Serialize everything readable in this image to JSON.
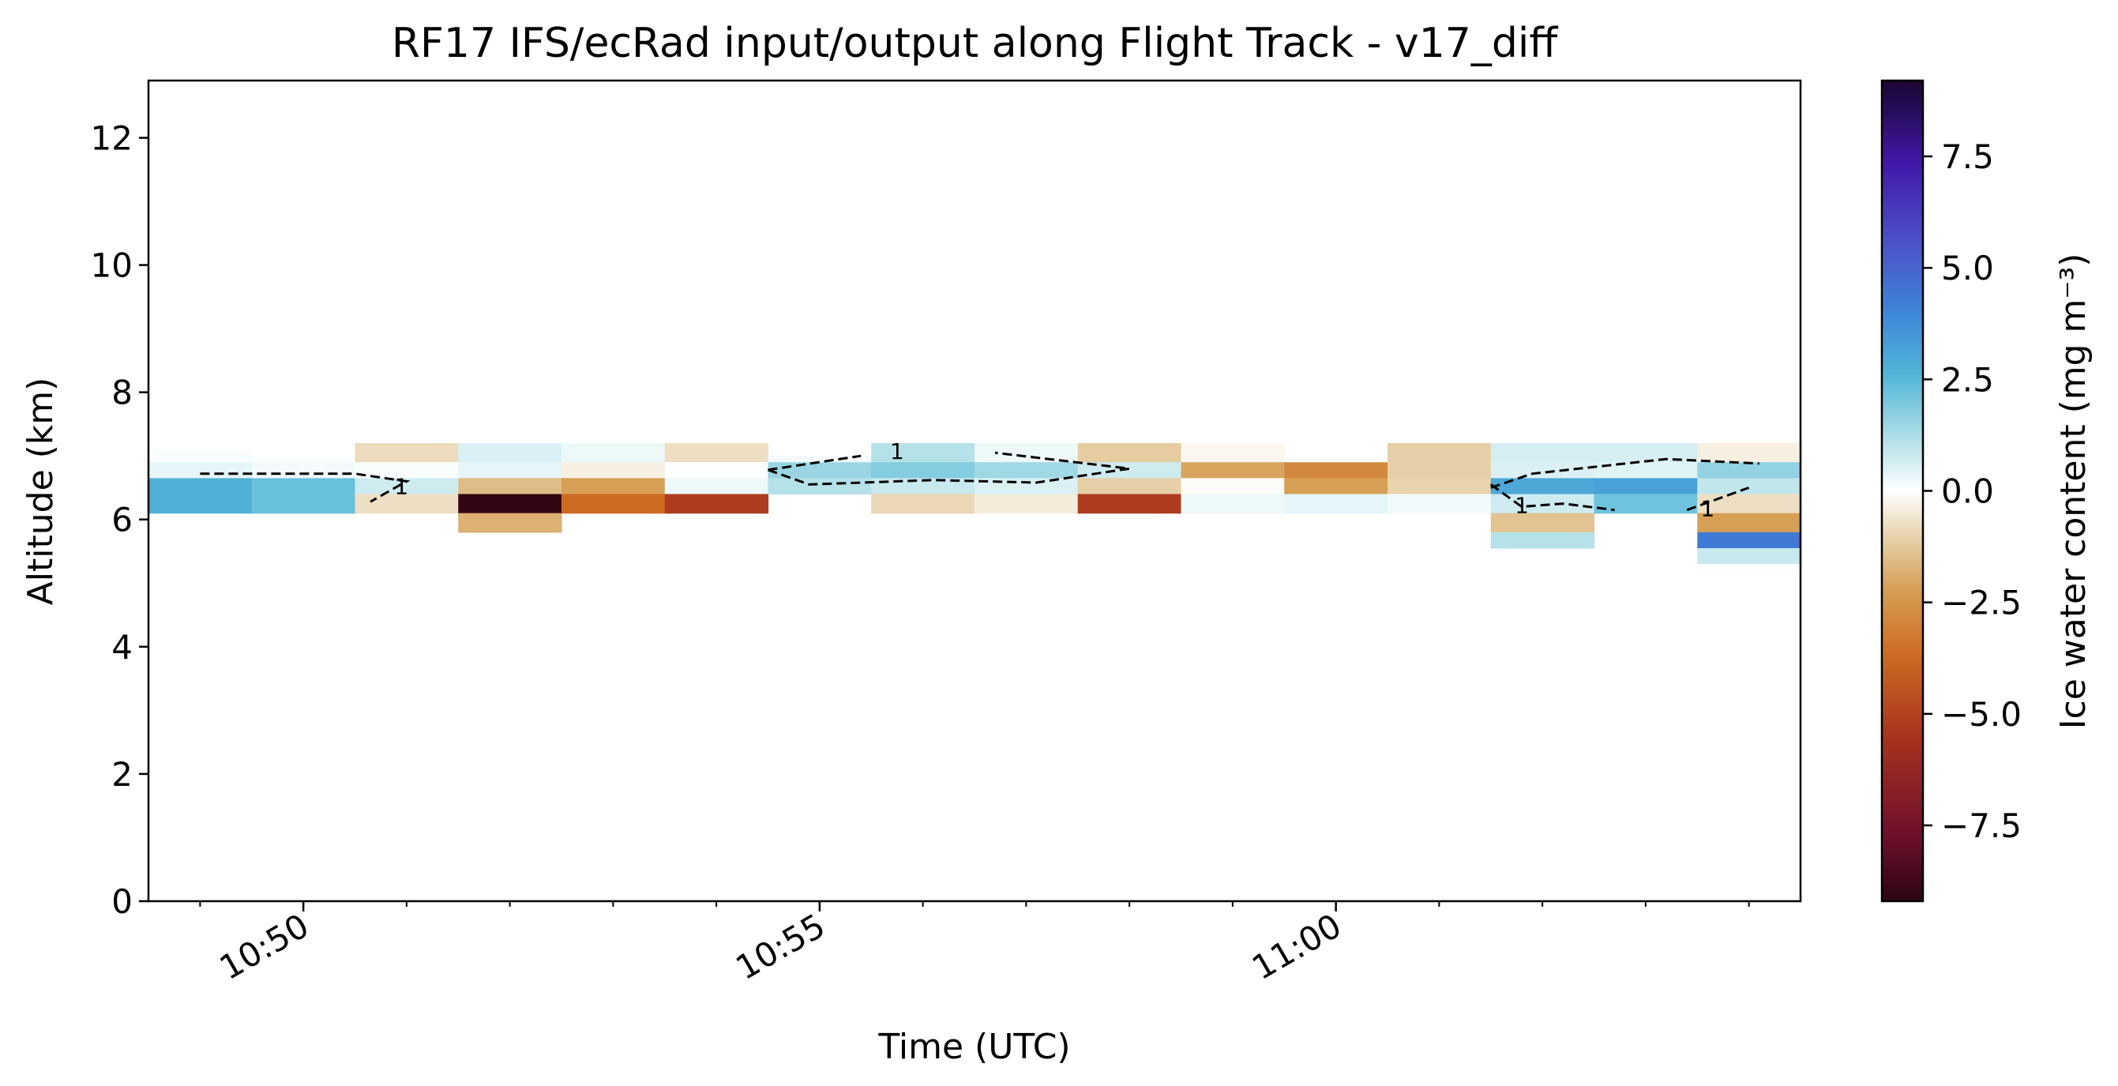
{
  "chart_data": {
    "type": "heatmap",
    "title": "RF17 IFS/ecRad input/output along Flight Track - v17_diff",
    "xlabel": "Time (UTC)",
    "ylabel": "Altitude (km)",
    "xlim": [
      "10:48:30",
      "11:04:30"
    ],
    "ylim": [
      0,
      12.9
    ],
    "x_major_ticks": [
      "10:50",
      "10:55",
      "11:00"
    ],
    "x_tick_rotation": 30,
    "y_ticks": [
      0,
      2,
      4,
      6,
      8,
      10,
      12
    ],
    "colorbar": {
      "label": "Ice water content (mg m⁻³)",
      "range": [
        -9.2,
        9.2
      ],
      "ticks": [
        -7.5,
        -5.0,
        -2.5,
        0.0,
        2.5,
        5.0,
        7.5
      ],
      "tick_labels": [
        "−7.5",
        "−5.0",
        "−2.5",
        "0.0",
        "2.5",
        "5.0",
        "7.5"
      ],
      "colormap": "diverging: dark red/brown (negative) – white (0) – blue/purple (positive)"
    },
    "time_columns": [
      "10:48:30",
      "10:49:30",
      "10:50:30",
      "10:51:30",
      "10:52:30",
      "10:53:30",
      "10:54:30",
      "10:55:30",
      "10:56:30",
      "10:57:30",
      "10:58:30",
      "10:59:30",
      "11:00:30",
      "11:01:30",
      "11:02:30",
      "11:03:30",
      "11:04:30"
    ],
    "cells": [
      {
        "t": 0,
        "z0": 6.9,
        "z1": 7.1,
        "v": 0.1
      },
      {
        "t": 0,
        "z0": 6.65,
        "z1": 6.9,
        "v": 0.4
      },
      {
        "t": 0,
        "z0": 6.1,
        "z1": 6.65,
        "v": 2.8
      },
      {
        "t": 1,
        "z0": 6.9,
        "z1": 7.0,
        "v": 0.1
      },
      {
        "t": 1,
        "z0": 6.65,
        "z1": 6.9,
        "v": 0.2
      },
      {
        "t": 1,
        "z0": 6.1,
        "z1": 6.65,
        "v": 2.3
      },
      {
        "t": 2,
        "z0": 6.9,
        "z1": 7.2,
        "v": -0.9
      },
      {
        "t": 2,
        "z0": 6.65,
        "z1": 6.9,
        "v": 0.1
      },
      {
        "t": 2,
        "z0": 6.4,
        "z1": 6.65,
        "v": 0.8
      },
      {
        "t": 2,
        "z0": 6.1,
        "z1": 6.4,
        "v": -0.8
      },
      {
        "t": 3,
        "z0": 6.9,
        "z1": 7.2,
        "v": 0.6
      },
      {
        "t": 3,
        "z0": 6.65,
        "z1": 6.9,
        "v": 0.4
      },
      {
        "t": 3,
        "z0": 6.4,
        "z1": 6.65,
        "v": -1.8
      },
      {
        "t": 3,
        "z0": 6.1,
        "z1": 6.4,
        "v": -9.0
      },
      {
        "t": 3,
        "z0": 5.8,
        "z1": 6.1,
        "v": -2.2
      },
      {
        "t": 4,
        "z0": 6.9,
        "z1": 7.2,
        "v": 0.3
      },
      {
        "t": 4,
        "z0": 6.65,
        "z1": 6.9,
        "v": -0.4
      },
      {
        "t": 4,
        "z0": 6.4,
        "z1": 6.65,
        "v": -2.8
      },
      {
        "t": 4,
        "z0": 6.1,
        "z1": 6.4,
        "v": -4.2
      },
      {
        "t": 5,
        "z0": 6.9,
        "z1": 7.2,
        "v": -0.8
      },
      {
        "t": 5,
        "z0": 6.65,
        "z1": 6.9,
        "v": 0.05
      },
      {
        "t": 5,
        "z0": 6.4,
        "z1": 6.65,
        "v": 0.3
      },
      {
        "t": 5,
        "z0": 6.1,
        "z1": 6.4,
        "v": -5.3
      },
      {
        "t": 6,
        "z0": 6.9,
        "z1": 7.0,
        "v": 0.2
      },
      {
        "t": 6,
        "z0": 6.65,
        "z1": 6.9,
        "v": 1.6
      },
      {
        "t": 6,
        "z0": 6.4,
        "z1": 6.65,
        "v": 1.2
      },
      {
        "t": 7,
        "z0": 6.9,
        "z1": 7.2,
        "v": 1.2
      },
      {
        "t": 7,
        "z0": 6.65,
        "z1": 6.9,
        "v": 1.9
      },
      {
        "t": 7,
        "z0": 6.4,
        "z1": 6.65,
        "v": 0.9
      },
      {
        "t": 7,
        "z0": 6.1,
        "z1": 6.4,
        "v": -1.0
      },
      {
        "t": 8,
        "z0": 6.9,
        "z1": 7.2,
        "v": 0.3
      },
      {
        "t": 8,
        "z0": 6.65,
        "z1": 6.9,
        "v": 1.5
      },
      {
        "t": 8,
        "z0": 6.4,
        "z1": 6.65,
        "v": 0.6
      },
      {
        "t": 8,
        "z0": 6.1,
        "z1": 6.4,
        "v": -0.5
      },
      {
        "t": 9,
        "z0": 6.9,
        "z1": 7.2,
        "v": -1.3
      },
      {
        "t": 9,
        "z0": 6.65,
        "z1": 6.9,
        "v": 0.8
      },
      {
        "t": 9,
        "z0": 6.4,
        "z1": 6.65,
        "v": -1.2
      },
      {
        "t": 9,
        "z0": 6.1,
        "z1": 6.4,
        "v": -5.3
      },
      {
        "t": 10,
        "z0": 6.9,
        "z1": 7.2,
        "v": -0.2
      },
      {
        "t": 10,
        "z0": 6.65,
        "z1": 6.9,
        "v": -2.6
      },
      {
        "t": 10,
        "z0": 6.4,
        "z1": 6.65,
        "v": -0.1
      },
      {
        "t": 10,
        "z0": 6.1,
        "z1": 6.4,
        "v": 0.3
      },
      {
        "t": 11,
        "z0": 6.65,
        "z1": 6.9,
        "v": -3.4
      },
      {
        "t": 11,
        "z0": 6.4,
        "z1": 6.65,
        "v": -2.8
      },
      {
        "t": 11,
        "z0": 6.1,
        "z1": 6.4,
        "v": 0.4
      },
      {
        "t": 12,
        "z0": 6.65,
        "z1": 7.2,
        "v": -1.2
      },
      {
        "t": 12,
        "z0": 6.4,
        "z1": 6.65,
        "v": -1.1
      },
      {
        "t": 12,
        "z0": 6.1,
        "z1": 6.4,
        "v": 0.2
      },
      {
        "t": 13,
        "z0": 6.9,
        "z1": 7.2,
        "v": 0.7
      },
      {
        "t": 13,
        "z0": 6.65,
        "z1": 6.9,
        "v": 0.6
      },
      {
        "t": 13,
        "z0": 6.4,
        "z1": 6.65,
        "v": 3.0
      },
      {
        "t": 13,
        "z0": 6.1,
        "z1": 6.4,
        "v": 0.8
      },
      {
        "t": 13,
        "z0": 5.8,
        "z1": 6.1,
        "v": -1.6
      },
      {
        "t": 13,
        "z0": 5.55,
        "z1": 5.8,
        "v": 1.2
      },
      {
        "t": 14,
        "z0": 6.9,
        "z1": 7.2,
        "v": 0.7
      },
      {
        "t": 14,
        "z0": 6.65,
        "z1": 6.9,
        "v": 0.5
      },
      {
        "t": 14,
        "z0": 6.4,
        "z1": 6.65,
        "v": 3.2
      },
      {
        "t": 14,
        "z0": 6.1,
        "z1": 6.4,
        "v": 2.2
      },
      {
        "t": 15,
        "z0": 6.9,
        "z1": 7.2,
        "v": -0.4
      },
      {
        "t": 15,
        "z0": 6.65,
        "z1": 6.9,
        "v": 1.7
      },
      {
        "t": 15,
        "z0": 6.4,
        "z1": 6.65,
        "v": 1.0
      },
      {
        "t": 15,
        "z0": 6.1,
        "z1": 6.4,
        "v": -0.8
      },
      {
        "t": 15,
        "z0": 5.8,
        "z1": 6.1,
        "v": -2.8
      },
      {
        "t": 15,
        "z0": 5.55,
        "z1": 5.8,
        "v": 4.3
      },
      {
        "t": 15,
        "z0": 5.3,
        "z1": 5.55,
        "v": 0.9
      },
      {
        "t": 15,
        "z0": 5.15,
        "z1": 5.3,
        "v": 0.05
      }
    ],
    "contour_level": "1",
    "contours": [
      {
        "points": [
          [
            0.5,
            6.72
          ],
          [
            2.0,
            6.72
          ],
          [
            2.5,
            6.6
          ],
          [
            2.15,
            6.28
          ]
        ],
        "labels": [
          {
            "x": 2.45,
            "y": 6.5
          }
        ]
      },
      {
        "points": [
          [
            6.0,
            6.78
          ],
          [
            6.4,
            6.55
          ],
          [
            7.6,
            6.62
          ],
          [
            8.6,
            6.58
          ],
          [
            9.5,
            6.8
          ],
          [
            8.2,
            7.05
          ]
        ],
        "labels": [
          {
            "x": 7.25,
            "y": 7.05
          }
        ]
      },
      {
        "points": [
          [
            6.0,
            6.78
          ],
          [
            6.9,
            7.0
          ]
        ],
        "labels": []
      },
      {
        "points": [
          [
            13.0,
            6.55
          ],
          [
            13.3,
            6.2
          ],
          [
            13.7,
            6.25
          ],
          [
            14.2,
            6.15
          ]
        ],
        "labels": [
          {
            "x": 13.3,
            "y": 6.2
          }
        ]
      },
      {
        "points": [
          [
            13.0,
            6.5
          ],
          [
            13.4,
            6.72
          ],
          [
            14.7,
            6.95
          ],
          [
            15.6,
            6.88
          ]
        ],
        "labels": []
      },
      {
        "points": [
          [
            14.9,
            6.15
          ],
          [
            15.5,
            6.5
          ]
        ],
        "labels": [
          {
            "x": 15.1,
            "y": 6.15
          }
        ]
      }
    ]
  }
}
